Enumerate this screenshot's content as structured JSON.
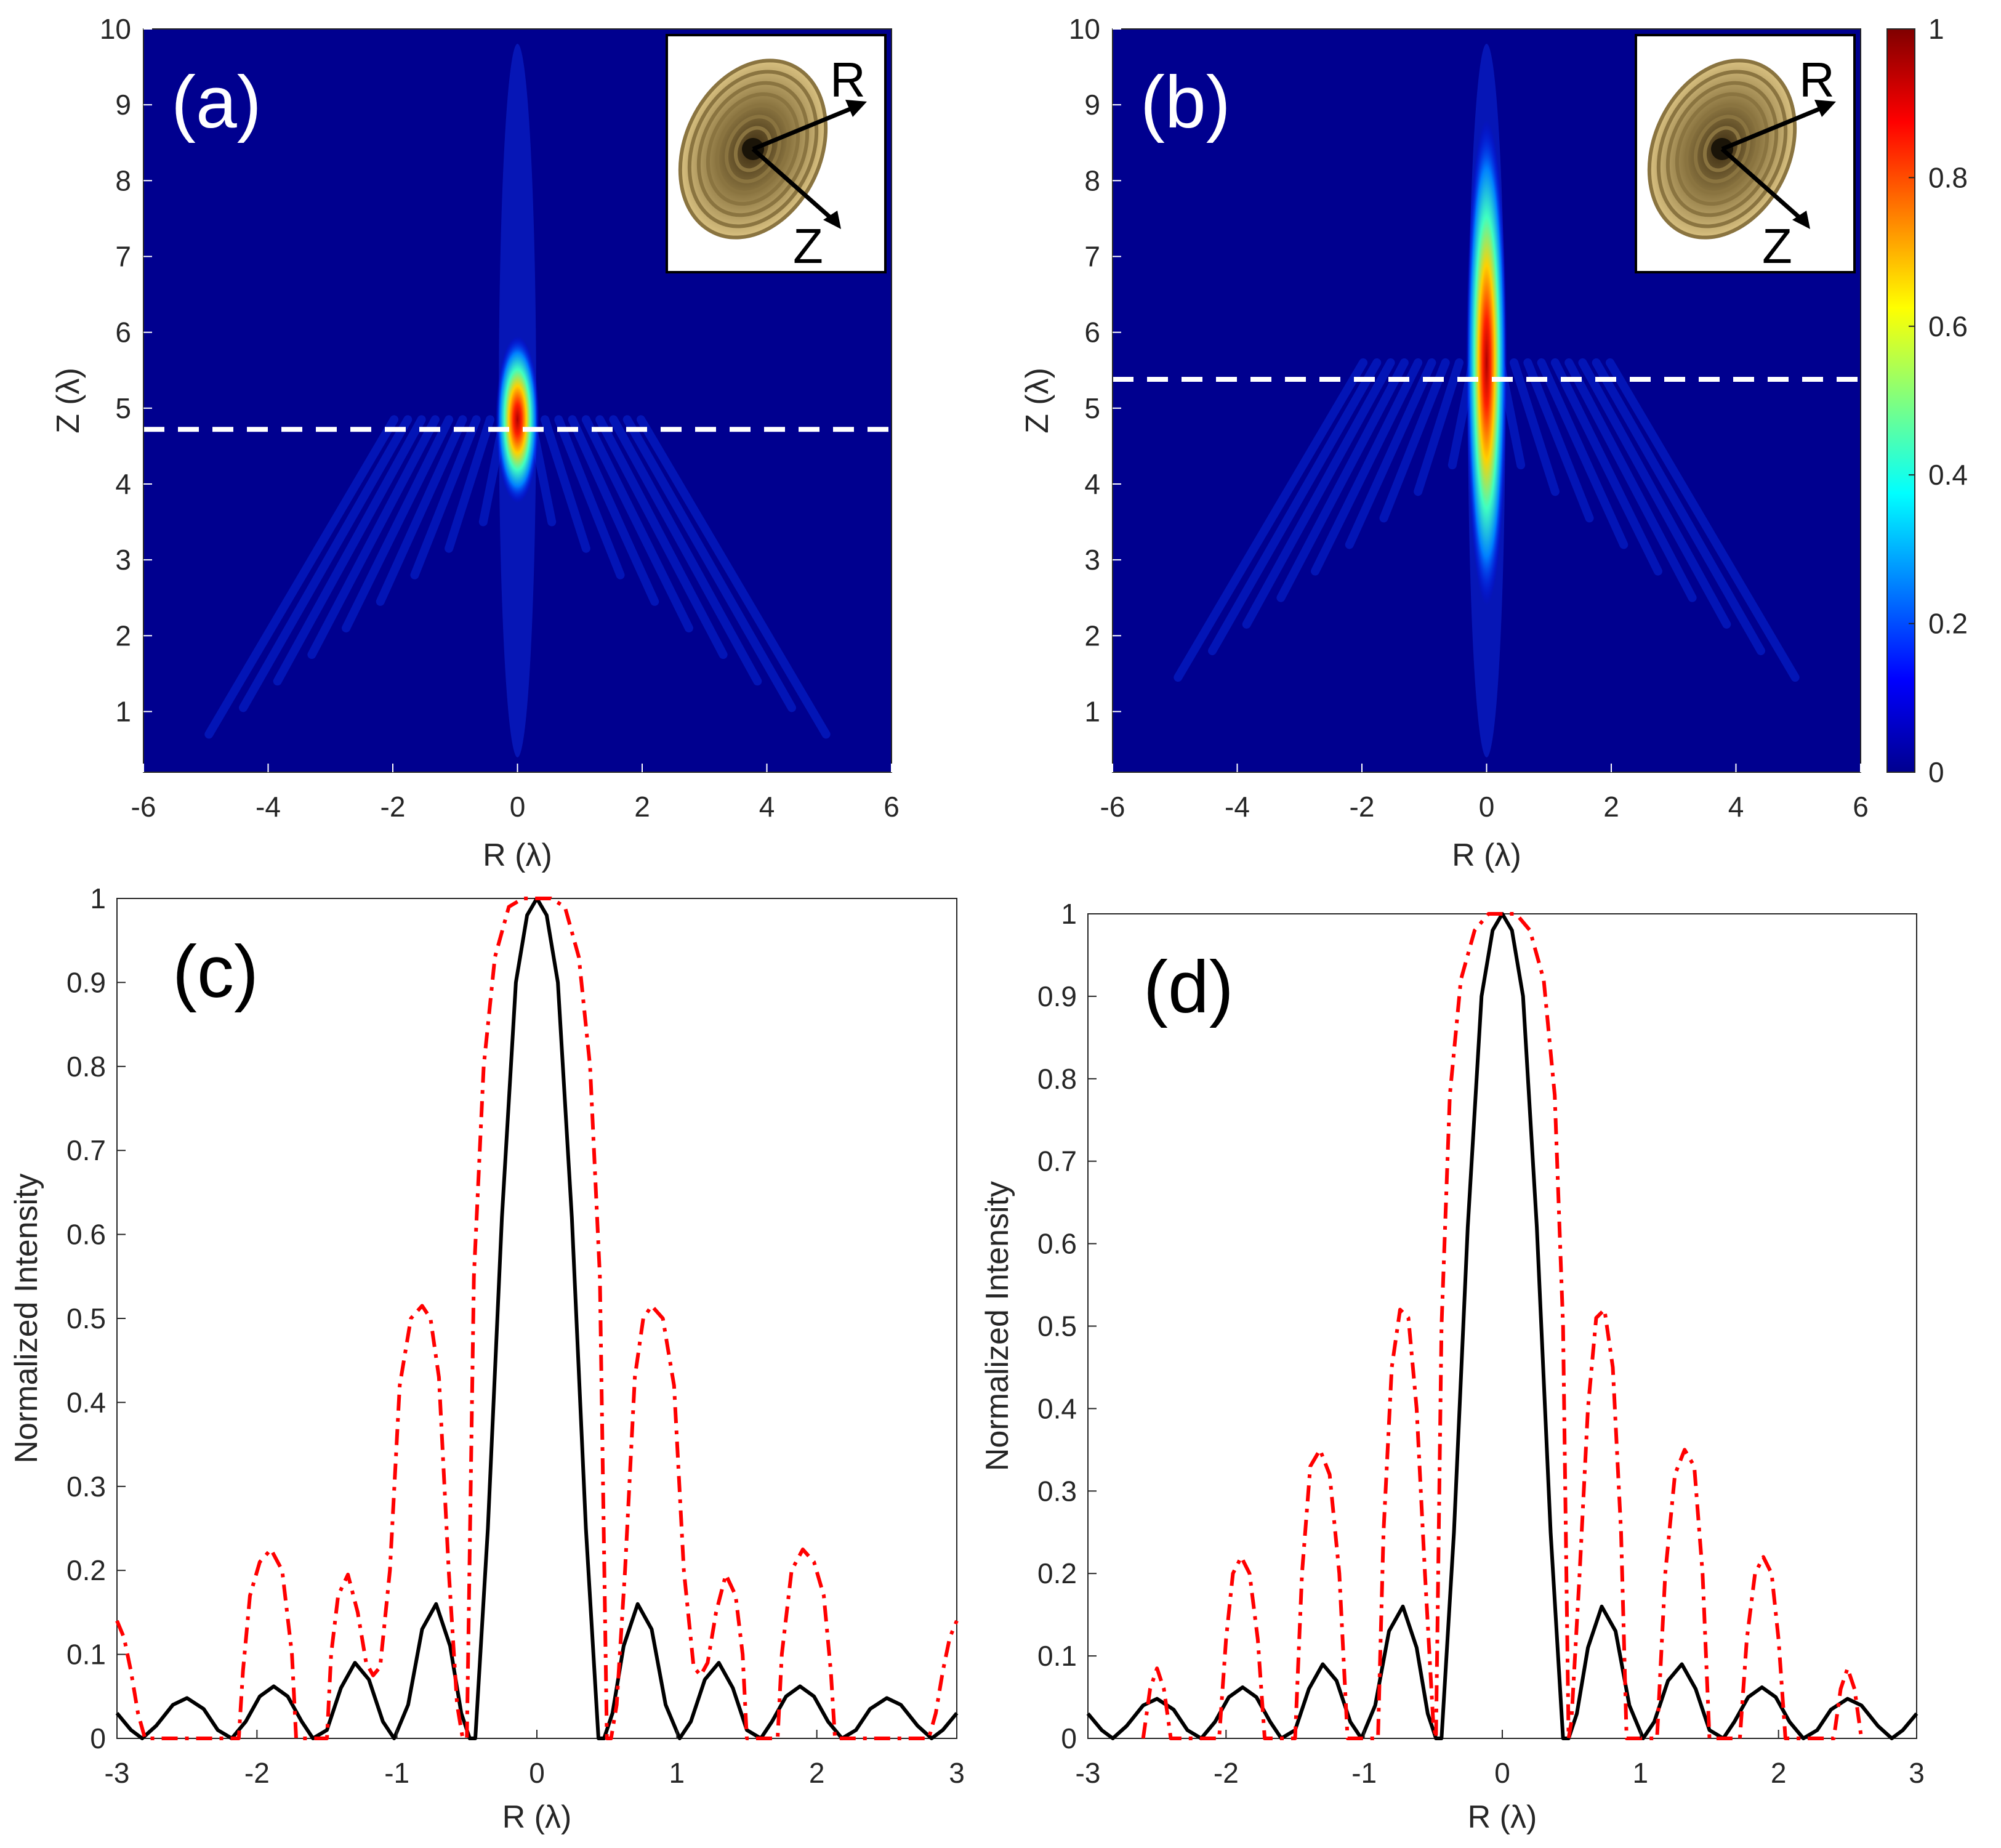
{
  "chart_data": [
    {
      "id": "a",
      "type": "heatmap",
      "panel_label": "(a)",
      "xlabel": "R (λ)",
      "ylabel": "Z (λ)",
      "xlim": [
        -6,
        6
      ],
      "ylim": [
        0.2,
        10
      ],
      "x_ticks": [
        "-6",
        "-4",
        "-2",
        "0",
        "2",
        "4",
        "6"
      ],
      "y_ticks": [
        "1",
        "2",
        "3",
        "4",
        "5",
        "6",
        "7",
        "8",
        "9",
        "10"
      ],
      "focus_center": [
        0,
        4.85
      ],
      "focus_semi_axes": [
        0.35,
        1.1
      ],
      "dashed_line_z": 4.72,
      "inset_labels": [
        "R",
        "Z"
      ]
    },
    {
      "id": "b",
      "type": "heatmap",
      "panel_label": "(b)",
      "xlabel": "R (λ)",
      "ylabel": "Z (λ)",
      "xlim": [
        -6,
        6
      ],
      "ylim": [
        0.2,
        10
      ],
      "x_ticks": [
        "-6",
        "-4",
        "-2",
        "0",
        "2",
        "4",
        "6"
      ],
      "y_ticks": [
        "1",
        "2",
        "3",
        "4",
        "5",
        "6",
        "7",
        "8",
        "9",
        "10"
      ],
      "focus_center": [
        0,
        5.6
      ],
      "focus_semi_axes": [
        0.33,
        3.2
      ],
      "dashed_line_z": 5.38,
      "inset_labels": [
        "R",
        "Z"
      ],
      "colorbar": {
        "range": [
          0,
          1
        ],
        "ticks": [
          "0",
          "0.2",
          "0.4",
          "0.6",
          "0.8",
          "1"
        ]
      }
    },
    {
      "id": "c",
      "type": "line",
      "panel_label": "(c)",
      "xlabel": "R (λ)",
      "ylabel": "Normalized Intensity",
      "xlim": [
        -3,
        3
      ],
      "ylim": [
        0,
        1
      ],
      "x_ticks": [
        "-3",
        "-2",
        "-1",
        "0",
        "1",
        "2",
        "3"
      ],
      "y_ticks": [
        "0",
        "0.1",
        "0.2",
        "0.3",
        "0.4",
        "0.5",
        "0.6",
        "0.7",
        "0.8",
        "0.9",
        "1"
      ],
      "series": [
        {
          "name": "solid",
          "color": "#000000",
          "x": [
            -3,
            -2.9,
            -2.82,
            -2.72,
            -2.6,
            -2.5,
            -2.38,
            -2.28,
            -2.18,
            -2.08,
            -1.98,
            -1.88,
            -1.78,
            -1.68,
            -1.6,
            -1.5,
            -1.4,
            -1.3,
            -1.2,
            -1.1,
            -1.02,
            -0.92,
            -0.82,
            -0.72,
            -0.62,
            -0.54,
            -0.48,
            -0.44,
            -0.35,
            -0.25,
            -0.15,
            -0.07,
            0,
            0.07,
            0.15,
            0.25,
            0.35,
            0.44,
            0.48,
            0.54,
            0.62,
            0.72,
            0.82,
            0.92,
            1.02,
            1.1,
            1.2,
            1.3,
            1.4,
            1.5,
            1.6,
            1.68,
            1.78,
            1.88,
            1.98,
            2.08,
            2.18,
            2.28,
            2.38,
            2.5,
            2.6,
            2.72,
            2.82,
            2.9,
            3
          ],
          "y": [
            0.03,
            0.01,
            0.0,
            0.015,
            0.04,
            0.048,
            0.035,
            0.01,
            0.0,
            0.02,
            0.05,
            0.062,
            0.05,
            0.02,
            0.0,
            0.01,
            0.06,
            0.09,
            0.07,
            0.02,
            0.0,
            0.04,
            0.13,
            0.16,
            0.11,
            0.03,
            0.0,
            0.0,
            0.25,
            0.62,
            0.9,
            0.98,
            1.0,
            0.98,
            0.9,
            0.62,
            0.25,
            0.0,
            0.0,
            0.03,
            0.11,
            0.16,
            0.13,
            0.04,
            0.0,
            0.02,
            0.07,
            0.09,
            0.06,
            0.01,
            0.0,
            0.02,
            0.05,
            0.062,
            0.05,
            0.02,
            0.0,
            0.01,
            0.035,
            0.048,
            0.04,
            0.015,
            0.0,
            0.01,
            0.03
          ]
        },
        {
          "name": "dash-dot",
          "color": "#ff0000",
          "x": [
            -3,
            -2.95,
            -2.9,
            -2.85,
            -2.8,
            -2.13,
            -2.1,
            -2.05,
            -1.98,
            -1.9,
            -1.82,
            -1.75,
            -1.72,
            -1.5,
            -1.47,
            -1.42,
            -1.35,
            -1.28,
            -1.22,
            -1.17,
            -1.12,
            -1.05,
            -0.98,
            -0.9,
            -0.82,
            -0.76,
            -0.7,
            -0.63,
            -0.57,
            -0.53,
            -0.5,
            -0.45,
            -0.38,
            -0.3,
            -0.2,
            -0.1,
            0,
            0.1,
            0.2,
            0.3,
            0.38,
            0.45,
            0.5,
            0.53,
            0.57,
            0.63,
            0.7,
            0.76,
            0.82,
            0.9,
            0.98,
            1.05,
            1.12,
            1.17,
            1.22,
            1.28,
            1.35,
            1.42,
            1.47,
            1.5,
            1.72,
            1.75,
            1.82,
            1.9,
            1.98,
            2.05,
            2.1,
            2.13,
            2.8,
            2.85,
            2.9,
            2.95,
            3
          ],
          "y": [
            0.14,
            0.12,
            0.08,
            0.03,
            0.0,
            0.0,
            0.08,
            0.17,
            0.21,
            0.225,
            0.2,
            0.1,
            0.0,
            0.0,
            0.1,
            0.17,
            0.195,
            0.15,
            0.09,
            0.075,
            0.085,
            0.2,
            0.42,
            0.5,
            0.515,
            0.5,
            0.43,
            0.2,
            0.04,
            0.0,
            0.0,
            0.55,
            0.8,
            0.93,
            0.99,
            1.0,
            1.0,
            1.0,
            0.99,
            0.93,
            0.8,
            0.55,
            0.0,
            0.0,
            0.04,
            0.2,
            0.43,
            0.5,
            0.515,
            0.5,
            0.42,
            0.2,
            0.085,
            0.075,
            0.09,
            0.15,
            0.195,
            0.17,
            0.1,
            0.0,
            0.0,
            0.1,
            0.2,
            0.225,
            0.21,
            0.17,
            0.08,
            0.0,
            0.0,
            0.03,
            0.08,
            0.12,
            0.14
          ]
        }
      ]
    },
    {
      "id": "d",
      "type": "line",
      "panel_label": "(d)",
      "xlabel": "R (λ)",
      "ylabel": "Normalized Intensity",
      "xlim": [
        -3,
        3
      ],
      "ylim": [
        0,
        1
      ],
      "x_ticks": [
        "-3",
        "-2",
        "-1",
        "0",
        "1",
        "2",
        "3"
      ],
      "y_ticks": [
        "0",
        "0.1",
        "0.2",
        "0.3",
        "0.4",
        "0.5",
        "0.6",
        "0.7",
        "0.8",
        "0.9",
        "1"
      ],
      "series": [
        {
          "name": "solid",
          "color": "#000000",
          "x": [
            -3,
            -2.9,
            -2.82,
            -2.72,
            -2.6,
            -2.5,
            -2.38,
            -2.28,
            -2.18,
            -2.08,
            -1.98,
            -1.88,
            -1.78,
            -1.68,
            -1.6,
            -1.5,
            -1.4,
            -1.3,
            -1.2,
            -1.1,
            -1.02,
            -0.92,
            -0.82,
            -0.72,
            -0.62,
            -0.54,
            -0.48,
            -0.44,
            -0.35,
            -0.25,
            -0.15,
            -0.07,
            0,
            0.07,
            0.15,
            0.25,
            0.35,
            0.44,
            0.48,
            0.54,
            0.62,
            0.72,
            0.82,
            0.92,
            1.02,
            1.1,
            1.2,
            1.3,
            1.4,
            1.5,
            1.6,
            1.68,
            1.78,
            1.88,
            1.98,
            2.08,
            2.18,
            2.28,
            2.38,
            2.5,
            2.6,
            2.72,
            2.82,
            2.9,
            3
          ],
          "y": [
            0.03,
            0.01,
            0.0,
            0.015,
            0.04,
            0.048,
            0.035,
            0.01,
            0.0,
            0.02,
            0.05,
            0.062,
            0.05,
            0.02,
            0.0,
            0.01,
            0.06,
            0.09,
            0.07,
            0.02,
            0.0,
            0.04,
            0.13,
            0.16,
            0.11,
            0.03,
            0.0,
            0.0,
            0.25,
            0.62,
            0.9,
            0.98,
            1.0,
            0.98,
            0.9,
            0.62,
            0.25,
            0.0,
            0.0,
            0.03,
            0.11,
            0.16,
            0.13,
            0.04,
            0.0,
            0.02,
            0.07,
            0.09,
            0.06,
            0.01,
            0.0,
            0.02,
            0.05,
            0.062,
            0.05,
            0.02,
            0.0,
            0.01,
            0.035,
            0.048,
            0.04,
            0.015,
            0.0,
            0.01,
            0.03
          ]
        },
        {
          "name": "dash-dot",
          "color": "#ff0000",
          "x": [
            -2.6,
            -2.55,
            -2.5,
            -2.45,
            -2.4,
            -2.05,
            -2.0,
            -1.95,
            -1.89,
            -1.83,
            -1.77,
            -1.72,
            -1.5,
            -1.45,
            -1.39,
            -1.32,
            -1.25,
            -1.18,
            -1.12,
            -0.9,
            -0.86,
            -0.8,
            -0.74,
            -0.68,
            -0.62,
            -0.56,
            -0.5,
            -0.48,
            -0.44,
            -0.38,
            -0.3,
            -0.2,
            -0.1,
            0,
            0.1,
            0.2,
            0.3,
            0.38,
            0.44,
            0.48,
            0.5,
            0.56,
            0.62,
            0.68,
            0.74,
            0.8,
            0.86,
            0.9,
            1.12,
            1.18,
            1.25,
            1.32,
            1.39,
            1.45,
            1.5,
            1.72,
            1.77,
            1.83,
            1.89,
            1.95,
            2.0,
            2.05,
            2.4,
            2.45,
            2.5,
            2.55,
            2.6
          ],
          "y": [
            0.0,
            0.06,
            0.085,
            0.06,
            0.0,
            0.0,
            0.12,
            0.2,
            0.22,
            0.2,
            0.12,
            0.0,
            0.0,
            0.2,
            0.33,
            0.35,
            0.32,
            0.2,
            0.0,
            0.0,
            0.25,
            0.45,
            0.52,
            0.51,
            0.4,
            0.2,
            0.02,
            0.0,
            0.5,
            0.78,
            0.92,
            0.98,
            1.0,
            1.0,
            1.0,
            0.98,
            0.92,
            0.78,
            0.5,
            0.0,
            0.02,
            0.2,
            0.4,
            0.51,
            0.52,
            0.45,
            0.25,
            0.0,
            0.0,
            0.2,
            0.32,
            0.35,
            0.33,
            0.2,
            0.0,
            0.0,
            0.12,
            0.2,
            0.22,
            0.2,
            0.12,
            0.0,
            0.0,
            0.06,
            0.085,
            0.06,
            0.0
          ]
        }
      ]
    }
  ]
}
